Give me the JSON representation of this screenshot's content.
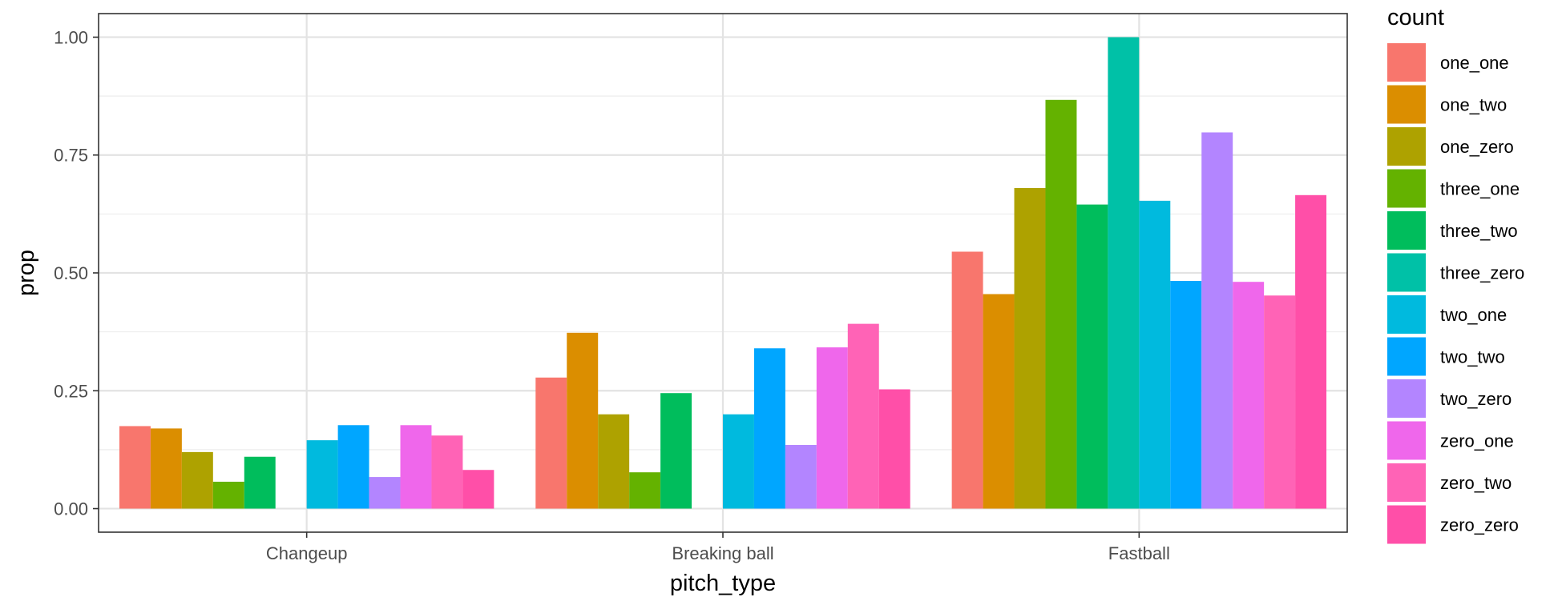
{
  "chart_data": {
    "type": "bar",
    "title": "",
    "xlabel": "pitch_type",
    "ylabel": "prop",
    "categories": [
      "Changeup",
      "Breaking ball",
      "Fastball"
    ],
    "ylim": [
      -0.05,
      1.05
    ],
    "yticks": [
      0,
      0.25,
      0.5,
      0.75,
      1
    ],
    "ytick_labels": [
      "0.00",
      "0.25",
      "0.50",
      "0.75",
      "1.00"
    ],
    "grid": true,
    "legend": {
      "title": "count",
      "position": "right"
    },
    "series": [
      {
        "name": "one_one",
        "color": "#F8766D",
        "values": [
          0.175,
          0.278,
          0.545
        ]
      },
      {
        "name": "one_two",
        "color": "#DB8E00",
        "values": [
          0.17,
          0.373,
          0.455
        ]
      },
      {
        "name": "one_zero",
        "color": "#AEA200",
        "values": [
          0.12,
          0.2,
          0.68
        ]
      },
      {
        "name": "three_one",
        "color": "#64B200",
        "values": [
          0.057,
          0.077,
          0.867
        ]
      },
      {
        "name": "three_two",
        "color": "#00BD5C",
        "values": [
          0.11,
          0.245,
          0.645
        ]
      },
      {
        "name": "three_zero",
        "color": "#00C1A7",
        "values": [
          0.0,
          0.0,
          1.0
        ]
      },
      {
        "name": "two_one",
        "color": "#00BADE",
        "values": [
          0.145,
          0.2,
          0.653
        ]
      },
      {
        "name": "two_two",
        "color": "#00A6FF",
        "values": [
          0.177,
          0.34,
          0.483
        ]
      },
      {
        "name": "two_zero",
        "color": "#B385FF",
        "values": [
          0.067,
          0.135,
          0.798
        ]
      },
      {
        "name": "zero_one",
        "color": "#EF67EB",
        "values": [
          0.177,
          0.342,
          0.481
        ]
      },
      {
        "name": "zero_two",
        "color": "#FF63B6",
        "values": [
          0.155,
          0.392,
          0.452
        ]
      },
      {
        "name": "zero_zero",
        "color": "#FF4FA8",
        "values": [
          0.082,
          0.253,
          0.665
        ]
      }
    ]
  }
}
